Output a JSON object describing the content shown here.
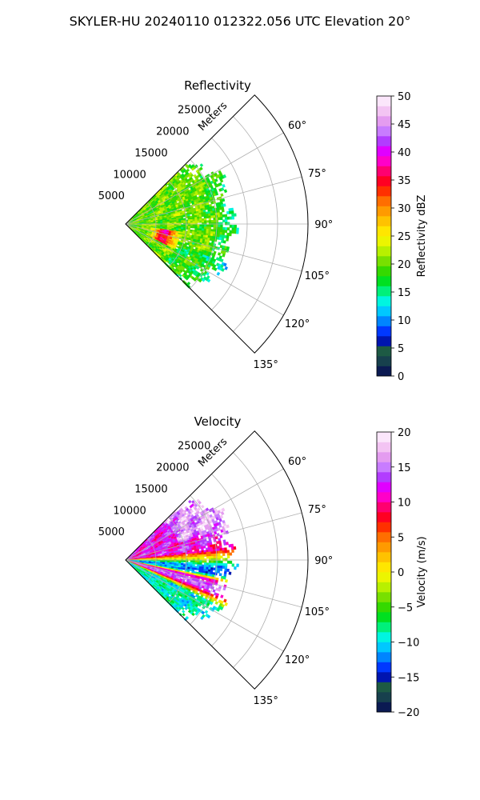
{
  "figure": {
    "suptitle": "SKYLER-HU  20240110  012322.056 UTC Elevation 20°"
  },
  "chart_data": [
    {
      "type": "heatmap",
      "projection": "polar-sector",
      "title": "Reflectivity",
      "radial_label": "Meters",
      "radial_ticks": [
        5000,
        10000,
        15000,
        20000,
        25000
      ],
      "radial_tick_labels": [
        "5000",
        "10000",
        "15000",
        "20000",
        "25000"
      ],
      "rlim": [
        0,
        30000
      ],
      "angle_ticks": [
        60,
        75,
        90,
        105,
        120,
        135
      ],
      "angle_tick_labels": [
        "60°",
        "75°",
        "90°",
        "105°",
        "120°",
        "135°"
      ],
      "theta_range": [
        45,
        135
      ],
      "data_max_range_m": 17500,
      "grid": true,
      "colorbar": {
        "label": "Reflectivity dBZ",
        "min": 0,
        "max": 50,
        "ticks": [
          0,
          5,
          10,
          15,
          20,
          25,
          30,
          35,
          40,
          45,
          50
        ],
        "tick_labels": [
          "0",
          "5",
          "10",
          "15",
          "20",
          "25",
          "30",
          "35",
          "40",
          "45",
          "50"
        ],
        "colormap": "HomeyerRainbow"
      },
      "field_description": "mostly 15-25 dBZ, with a band of 30-40 dBZ near 5000-8000 m at azimuths 100-115°"
    },
    {
      "type": "heatmap",
      "projection": "polar-sector",
      "title": "Velocity",
      "radial_label": "Meters",
      "radial_ticks": [
        5000,
        10000,
        15000,
        20000,
        25000
      ],
      "radial_tick_labels": [
        "5000",
        "10000",
        "15000",
        "20000",
        "25000"
      ],
      "rlim": [
        0,
        30000
      ],
      "angle_ticks": [
        60,
        75,
        90,
        105,
        120,
        135
      ],
      "angle_tick_labels": [
        "60°",
        "75°",
        "90°",
        "105°",
        "120°",
        "135°"
      ],
      "theta_range": [
        45,
        135
      ],
      "data_max_range_m": 17500,
      "grid": true,
      "colorbar": {
        "label": "Velocity (m/s)",
        "min": -20,
        "max": 20,
        "ticks": [
          -20,
          -15,
          -10,
          -5,
          0,
          5,
          10,
          15,
          20
        ],
        "tick_labels": [
          "−20",
          "−15",
          "−10",
          "−5",
          "0",
          "5",
          "10",
          "15",
          "20"
        ],
        "colormap": "HomeyerRainbow"
      },
      "field_description": "+10 to +15 m/s at azimuths 65-80°, near 0 around 85-92°, -10 to -15 m/s near 95-100°, +5 to +15 m/s near 105-110°, -10 m/s beyond 115°"
    }
  ],
  "colors": {
    "background": "#ffffff",
    "grid": "#b0b0b0",
    "axes": "#000000"
  }
}
